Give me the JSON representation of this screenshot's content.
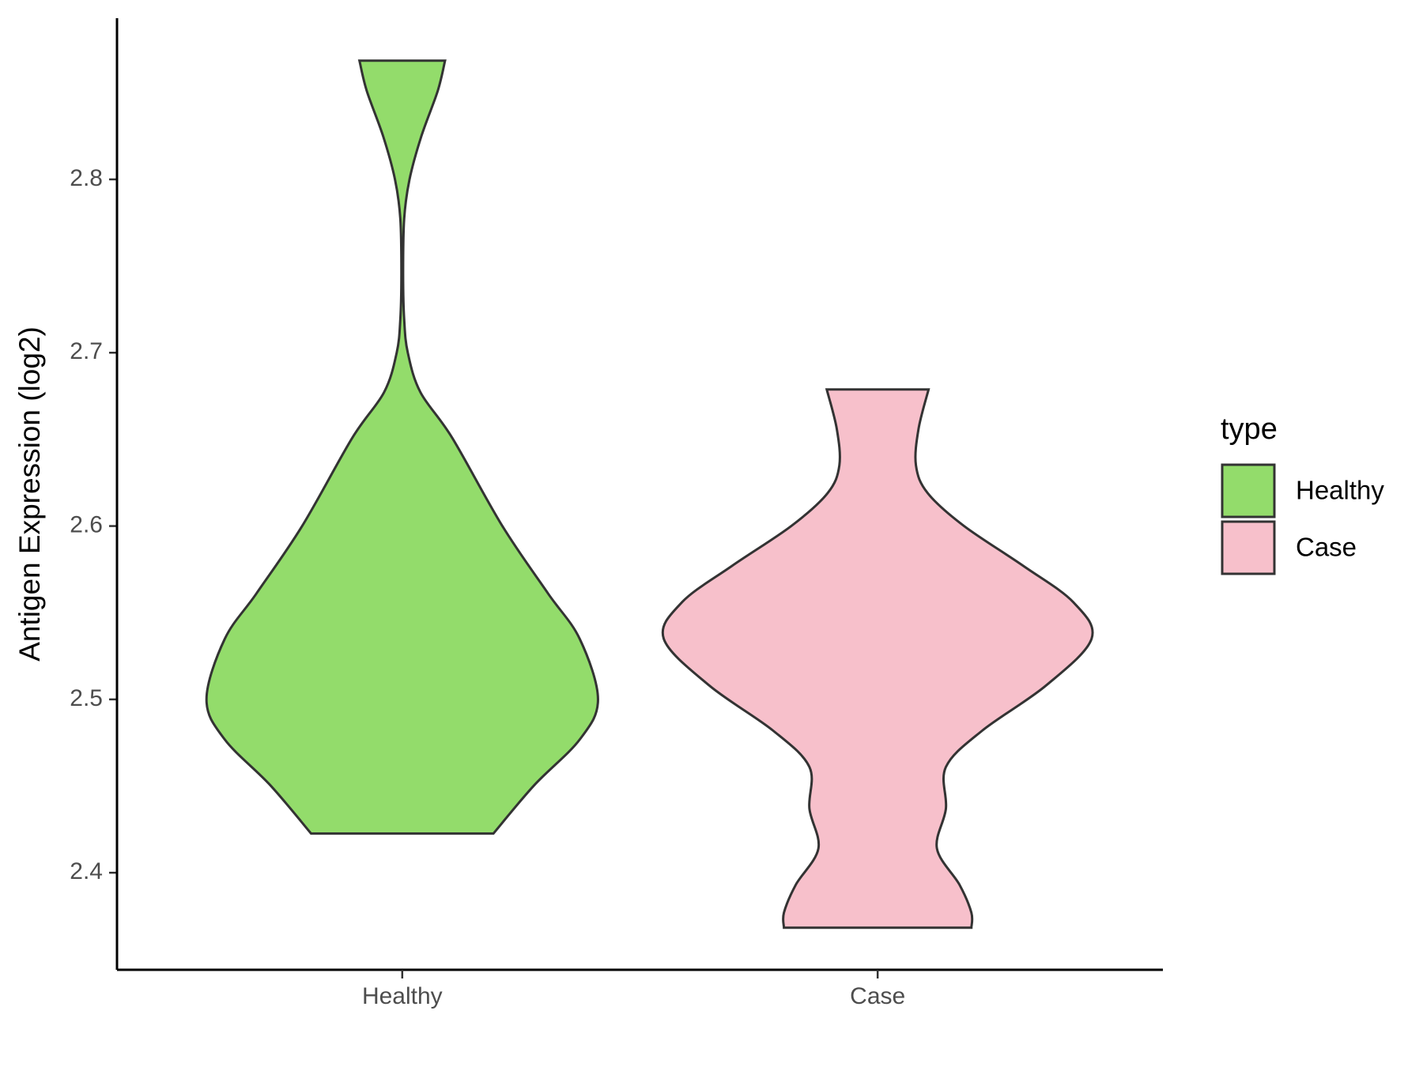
{
  "chart_data": {
    "type": "violin",
    "y_label": "Antigen Expression (log2)",
    "categories": [
      "Healthy",
      "Case"
    ],
    "legend_title": "type",
    "legend": "right",
    "ylim": [
      2.344,
      2.893
    ],
    "yticks": [
      2.4,
      2.5,
      2.6,
      2.7,
      2.8
    ],
    "series": [
      {
        "name": "Healthy",
        "color": "#93dc6b",
        "y": [
          2.4226,
          2.4505,
          2.4769,
          2.5,
          2.5348,
          2.5612,
          2.6,
          2.6508,
          2.6772,
          2.7,
          2.7193,
          2.7457,
          2.7773,
          2.8,
          2.8248,
          2.8511,
          2.8685
        ],
        "width": [
          0.426,
          0.617,
          0.83,
          0.915,
          0.83,
          0.681,
          0.468,
          0.234,
          0.085,
          0.026,
          0.009,
          0.004,
          0.009,
          0.034,
          0.089,
          0.166,
          0.2
        ]
      },
      {
        "name": "Case",
        "color": "#f7c0cb",
        "y": [
          2.3683,
          2.377,
          2.393,
          2.414,
          2.437,
          2.461,
          2.482,
          2.508,
          2.535,
          2.556,
          2.577,
          2.6,
          2.619,
          2.635,
          2.656,
          2.6788
        ],
        "width": [
          0.438,
          0.438,
          0.383,
          0.277,
          0.319,
          0.319,
          0.489,
          0.787,
          1,
          0.915,
          0.681,
          0.404,
          0.234,
          0.179,
          0.191,
          0.238
        ]
      }
    ]
  }
}
